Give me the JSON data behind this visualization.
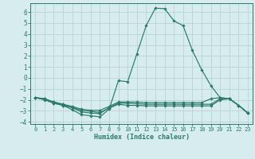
{
  "xlabel": "Humidex (Indice chaleur)",
  "background_color": "#d7ecec",
  "grid_color": "#b8d4d4",
  "line_color": "#2a7a6a",
  "xlim": [
    -0.5,
    23.5
  ],
  "ylim": [
    -4.2,
    6.8
  ],
  "yticks": [
    -4,
    -3,
    -2,
    -1,
    0,
    1,
    2,
    3,
    4,
    5,
    6
  ],
  "xticks": [
    0,
    1,
    2,
    3,
    4,
    5,
    6,
    7,
    8,
    9,
    10,
    11,
    12,
    13,
    14,
    15,
    16,
    17,
    18,
    19,
    20,
    21,
    22,
    23
  ],
  "series": [
    [
      [
        0,
        -1.8
      ],
      [
        1,
        -1.9
      ],
      [
        2,
        -2.3
      ],
      [
        3,
        -2.5
      ],
      [
        4,
        -2.9
      ],
      [
        5,
        -3.35
      ],
      [
        6,
        -3.45
      ],
      [
        7,
        -3.55
      ],
      [
        8,
        -2.85
      ],
      [
        9,
        -0.25
      ],
      [
        10,
        -0.35
      ],
      [
        11,
        2.2
      ],
      [
        12,
        4.75
      ],
      [
        13,
        6.35
      ],
      [
        14,
        6.3
      ],
      [
        15,
        5.2
      ],
      [
        16,
        4.75
      ],
      [
        17,
        2.5
      ],
      [
        18,
        0.75
      ],
      [
        19,
        -0.7
      ],
      [
        20,
        -1.8
      ],
      [
        21,
        -1.9
      ],
      [
        22,
        -2.5
      ],
      [
        23,
        -3.2
      ]
    ],
    [
      [
        0,
        -1.8
      ],
      [
        1,
        -2.0
      ],
      [
        2,
        -2.3
      ],
      [
        3,
        -2.5
      ],
      [
        4,
        -2.7
      ],
      [
        5,
        -2.95
      ],
      [
        6,
        -3.05
      ],
      [
        7,
        -3.15
      ],
      [
        8,
        -2.75
      ],
      [
        9,
        -2.4
      ],
      [
        10,
        -2.5
      ],
      [
        11,
        -2.5
      ],
      [
        12,
        -2.55
      ],
      [
        13,
        -2.55
      ],
      [
        14,
        -2.55
      ],
      [
        15,
        -2.55
      ],
      [
        16,
        -2.55
      ],
      [
        17,
        -2.55
      ],
      [
        18,
        -2.55
      ],
      [
        19,
        -2.55
      ],
      [
        20,
        -2.0
      ],
      [
        21,
        -1.9
      ],
      [
        22,
        -2.5
      ],
      [
        23,
        -3.2
      ]
    ],
    [
      [
        0,
        -1.8
      ],
      [
        1,
        -1.9
      ],
      [
        2,
        -2.2
      ],
      [
        3,
        -2.4
      ],
      [
        4,
        -2.6
      ],
      [
        5,
        -2.85
      ],
      [
        6,
        -2.95
      ],
      [
        7,
        -2.95
      ],
      [
        8,
        -2.6
      ],
      [
        9,
        -2.2
      ],
      [
        10,
        -2.2
      ],
      [
        11,
        -2.2
      ],
      [
        12,
        -2.25
      ],
      [
        13,
        -2.25
      ],
      [
        14,
        -2.25
      ],
      [
        15,
        -2.25
      ],
      [
        16,
        -2.25
      ],
      [
        17,
        -2.25
      ],
      [
        18,
        -2.25
      ],
      [
        19,
        -1.9
      ],
      [
        20,
        -1.8
      ],
      [
        21,
        -1.9
      ],
      [
        22,
        -2.5
      ],
      [
        23,
        -3.2
      ]
    ],
    [
      [
        0,
        -1.8
      ],
      [
        1,
        -1.9
      ],
      [
        2,
        -2.2
      ],
      [
        3,
        -2.4
      ],
      [
        4,
        -2.7
      ],
      [
        5,
        -3.1
      ],
      [
        6,
        -3.2
      ],
      [
        7,
        -3.25
      ],
      [
        8,
        -2.7
      ],
      [
        9,
        -2.3
      ],
      [
        10,
        -2.3
      ],
      [
        11,
        -2.35
      ],
      [
        12,
        -2.4
      ],
      [
        13,
        -2.4
      ],
      [
        14,
        -2.4
      ],
      [
        15,
        -2.4
      ],
      [
        16,
        -2.4
      ],
      [
        17,
        -2.4
      ],
      [
        18,
        -2.4
      ],
      [
        19,
        -2.4
      ],
      [
        20,
        -1.9
      ],
      [
        21,
        -1.9
      ],
      [
        22,
        -2.5
      ],
      [
        23,
        -3.2
      ]
    ]
  ]
}
